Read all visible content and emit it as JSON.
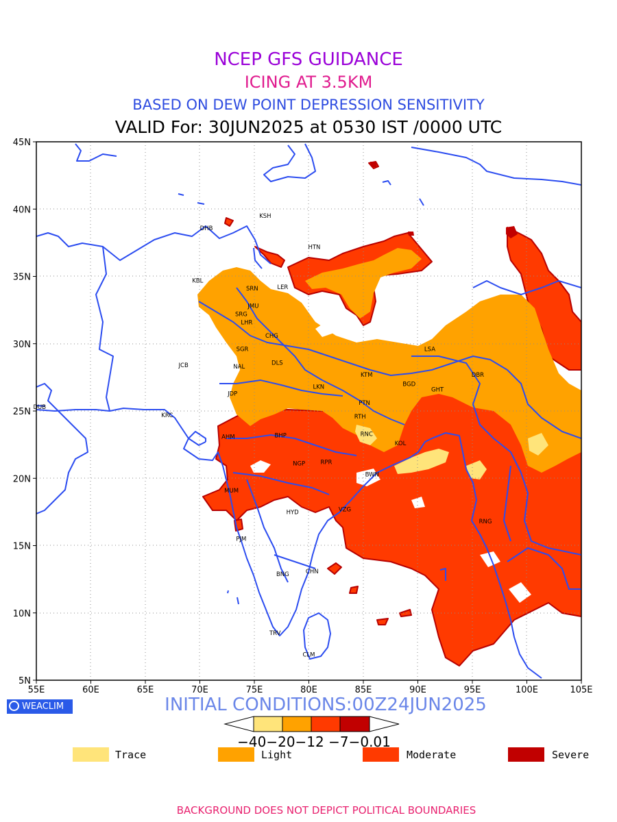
{
  "titles": {
    "line1": "NCEP GFS GUIDANCE",
    "line2": "ICING AT 3.5KM",
    "line3": "BASED ON DEW POINT DEPRESSION SENSITIVITY",
    "line4": "VALID For: 30JUN2025 at 0530 IST /0000 UTC"
  },
  "map": {
    "lon_range": [
      55,
      105
    ],
    "lat_range": [
      5,
      45
    ],
    "lon_ticks": [
      "55E",
      "60E",
      "65E",
      "70E",
      "75E",
      "80E",
      "85E",
      "90E",
      "95E",
      "100E",
      "105E"
    ],
    "lat_ticks": [
      "5N",
      "10N",
      "15N",
      "20N",
      "25N",
      "30N",
      "35N",
      "40N",
      "45N"
    ],
    "grid": "dotted",
    "coastline_color": "#2b4cf0",
    "stations": [
      {
        "code": "KSH",
        "lon": 76.0,
        "lat": 39.5
      },
      {
        "code": "DHB",
        "lon": 70.6,
        "lat": 38.6
      },
      {
        "code": "HTN",
        "lon": 80.5,
        "lat": 37.2
      },
      {
        "code": "KBL",
        "lon": 69.8,
        "lat": 34.7
      },
      {
        "code": "SRN",
        "lon": 74.8,
        "lat": 34.1
      },
      {
        "code": "LER",
        "lon": 77.6,
        "lat": 34.2
      },
      {
        "code": "JMU",
        "lon": 74.9,
        "lat": 32.8
      },
      {
        "code": "SRG",
        "lon": 73.8,
        "lat": 32.2
      },
      {
        "code": "LHR",
        "lon": 74.3,
        "lat": 31.6
      },
      {
        "code": "CHG",
        "lon": 76.6,
        "lat": 30.6
      },
      {
        "code": "SGR",
        "lon": 73.9,
        "lat": 29.6
      },
      {
        "code": "NAL",
        "lon": 73.6,
        "lat": 28.3
      },
      {
        "code": "DLS",
        "lon": 77.1,
        "lat": 28.6
      },
      {
        "code": "JCB",
        "lon": 68.5,
        "lat": 28.4
      },
      {
        "code": "LSA",
        "lon": 91.1,
        "lat": 29.6
      },
      {
        "code": "KTM",
        "lon": 85.3,
        "lat": 27.7
      },
      {
        "code": "BGD",
        "lon": 89.2,
        "lat": 27.0
      },
      {
        "code": "DBR",
        "lon": 95.5,
        "lat": 27.7
      },
      {
        "code": "GHT",
        "lon": 91.8,
        "lat": 26.6
      },
      {
        "code": "LKN",
        "lon": 80.9,
        "lat": 26.8
      },
      {
        "code": "JDP",
        "lon": 73.0,
        "lat": 26.3
      },
      {
        "code": "PTN",
        "lon": 85.1,
        "lat": 25.6
      },
      {
        "code": "DUB",
        "lon": 55.3,
        "lat": 25.3
      },
      {
        "code": "RTH",
        "lon": 84.7,
        "lat": 24.6
      },
      {
        "code": "KRC",
        "lon": 67.0,
        "lat": 24.7
      },
      {
        "code": "BHP",
        "lon": 77.4,
        "lat": 23.2
      },
      {
        "code": "AHM",
        "lon": 72.6,
        "lat": 23.1
      },
      {
        "code": "RNC",
        "lon": 85.3,
        "lat": 23.3
      },
      {
        "code": "KOL",
        "lon": 88.4,
        "lat": 22.6
      },
      {
        "code": "NGP",
        "lon": 79.1,
        "lat": 21.1
      },
      {
        "code": "RPR",
        "lon": 81.6,
        "lat": 21.2
      },
      {
        "code": "BWN",
        "lon": 85.8,
        "lat": 20.3
      },
      {
        "code": "MUM",
        "lon": 72.9,
        "lat": 19.1
      },
      {
        "code": "HYD",
        "lon": 78.5,
        "lat": 17.5
      },
      {
        "code": "VZG",
        "lon": 83.3,
        "lat": 17.7
      },
      {
        "code": "RNG",
        "lon": 96.2,
        "lat": 16.8
      },
      {
        "code": "PJM",
        "lon": 73.8,
        "lat": 15.5
      },
      {
        "code": "CHN",
        "lon": 80.3,
        "lat": 13.1
      },
      {
        "code": "BNG",
        "lon": 77.6,
        "lat": 12.9
      },
      {
        "code": "TRV",
        "lon": 76.9,
        "lat": 8.5
      },
      {
        "code": "CLM",
        "lon": 80.0,
        "lat": 6.9
      }
    ]
  },
  "legend": {
    "initial_conditions": "INITIAL CONDITIONS:00Z24JUN2025",
    "colorbar_labels": "−40−20−12 −7−0.01",
    "colorbar_colors": [
      "#ffe47a",
      "#ffa200",
      "#ff3a00",
      "#c10000"
    ],
    "categories": [
      {
        "label": "Trace",
        "color": "#ffe47a"
      },
      {
        "label": "Light",
        "color": "#ffa200"
      },
      {
        "label": "Moderate",
        "color": "#ff3a00"
      },
      {
        "label": "Severe",
        "color": "#c10000"
      }
    ]
  },
  "branding": {
    "logo_text": "WEACLIM"
  },
  "footer": "BACKGROUND DOES NOT DEPICT POLITICAL BOUNDARIES"
}
